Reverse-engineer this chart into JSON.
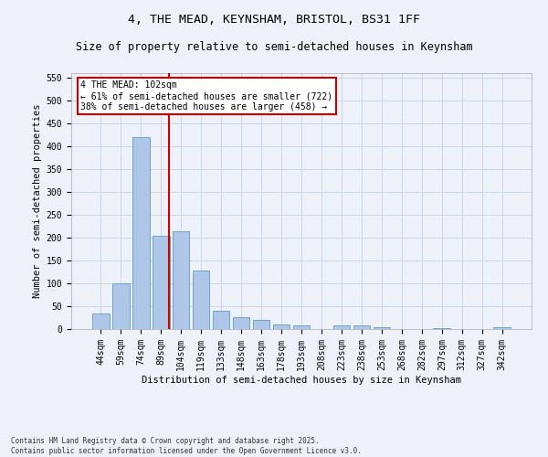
{
  "title": "4, THE MEAD, KEYNSHAM, BRISTOL, BS31 1FF",
  "subtitle": "Size of property relative to semi-detached houses in Keynsham",
  "xlabel": "Distribution of semi-detached houses by size in Keynsham",
  "ylabel": "Number of semi-detached properties",
  "categories": [
    "44sqm",
    "59sqm",
    "74sqm",
    "89sqm",
    "104sqm",
    "119sqm",
    "133sqm",
    "148sqm",
    "163sqm",
    "178sqm",
    "193sqm",
    "208sqm",
    "223sqm",
    "238sqm",
    "253sqm",
    "268sqm",
    "282sqm",
    "297sqm",
    "312sqm",
    "327sqm",
    "342sqm"
  ],
  "values": [
    35,
    100,
    420,
    205,
    215,
    128,
    40,
    26,
    20,
    10,
    8,
    0,
    8,
    8,
    5,
    0,
    0,
    2,
    0,
    0,
    4
  ],
  "bar_color": "#aec6e8",
  "bar_edge_color": "#5b9bd5",
  "grid_color": "#c8d8e8",
  "background_color": "#eef2f8",
  "vline_color": "#cc0000",
  "vline_x": 3.4,
  "annotation_text": "4 THE MEAD: 102sqm\n← 61% of semi-detached houses are smaller (722)\n38% of semi-detached houses are larger (458) →",
  "annotation_box_color": "#ffffff",
  "annotation_box_edge": "#cc0000",
  "footer": "Contains HM Land Registry data © Crown copyright and database right 2025.\nContains public sector information licensed under the Open Government Licence v3.0.",
  "ylim": [
    0,
    560
  ],
  "yticks": [
    0,
    50,
    100,
    150,
    200,
    250,
    300,
    350,
    400,
    450,
    500,
    550
  ],
  "title_fontsize": 9.5,
  "subtitle_fontsize": 8.5,
  "axis_label_fontsize": 7.5,
  "tick_fontsize": 7,
  "annotation_fontsize": 7,
  "footer_fontsize": 5.5
}
